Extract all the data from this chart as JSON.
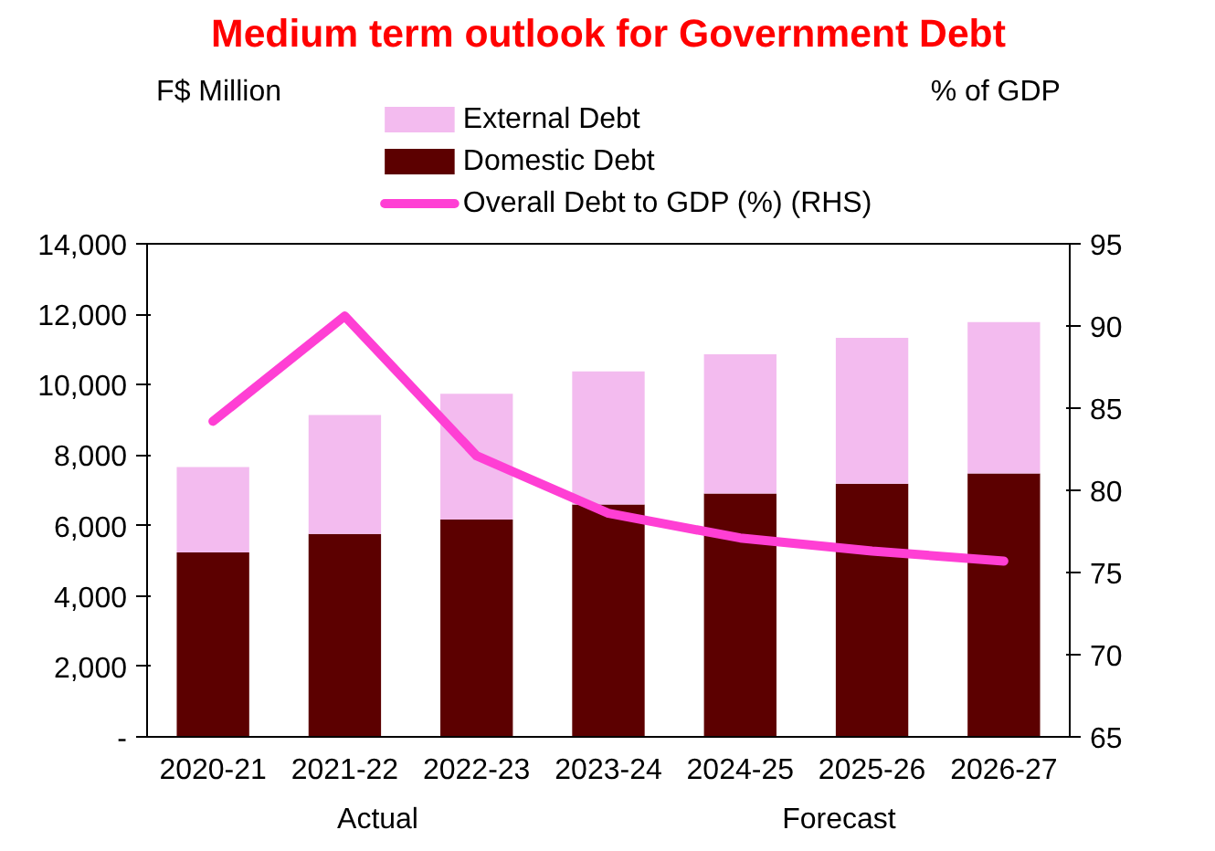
{
  "chart_data": {
    "type": "bar",
    "title": "Medium term outlook for Government Debt",
    "ylabel": "F$ Million",
    "y2label": "% of GDP",
    "categories": [
      "2020-21",
      "2021-22",
      "2022-23",
      "2023-24",
      "2024-25",
      "2025-26",
      "2026-27"
    ],
    "stacked": true,
    "series": [
      {
        "name": "Domestic Debt",
        "color": "#5c0000",
        "values": [
          5240,
          5760,
          6170,
          6600,
          6910,
          7190,
          7480
        ]
      },
      {
        "name": "External Debt",
        "color": "#f3bbef",
        "values": [
          2420,
          3380,
          3570,
          3780,
          3950,
          4140,
          4300
        ]
      },
      {
        "name": "Overall Debt to GDP (%) (RHS)",
        "type": "line",
        "axis": "y2",
        "color": "#ff3fd4",
        "values": [
          84.2,
          90.6,
          82.1,
          78.6,
          77.1,
          76.3,
          75.7
        ]
      }
    ],
    "ylim": [
      0,
      14000
    ],
    "yticks": [
      {
        "value": 0,
        "label": "-"
      },
      {
        "value": 2000,
        "label": "2,000"
      },
      {
        "value": 4000,
        "label": "4,000"
      },
      {
        "value": 6000,
        "label": "6,000"
      },
      {
        "value": 8000,
        "label": "8,000"
      },
      {
        "value": 10000,
        "label": "10,000"
      },
      {
        "value": 12000,
        "label": "12,000"
      },
      {
        "value": 14000,
        "label": "14,000"
      }
    ],
    "y2lim": [
      65,
      95
    ],
    "y2ticks": [
      65,
      70,
      75,
      80,
      85,
      90,
      95
    ],
    "annotations": [
      "Actual",
      "Forecast"
    ],
    "legend": "top",
    "grid": false,
    "marker": "none",
    "line_style": "solid"
  }
}
